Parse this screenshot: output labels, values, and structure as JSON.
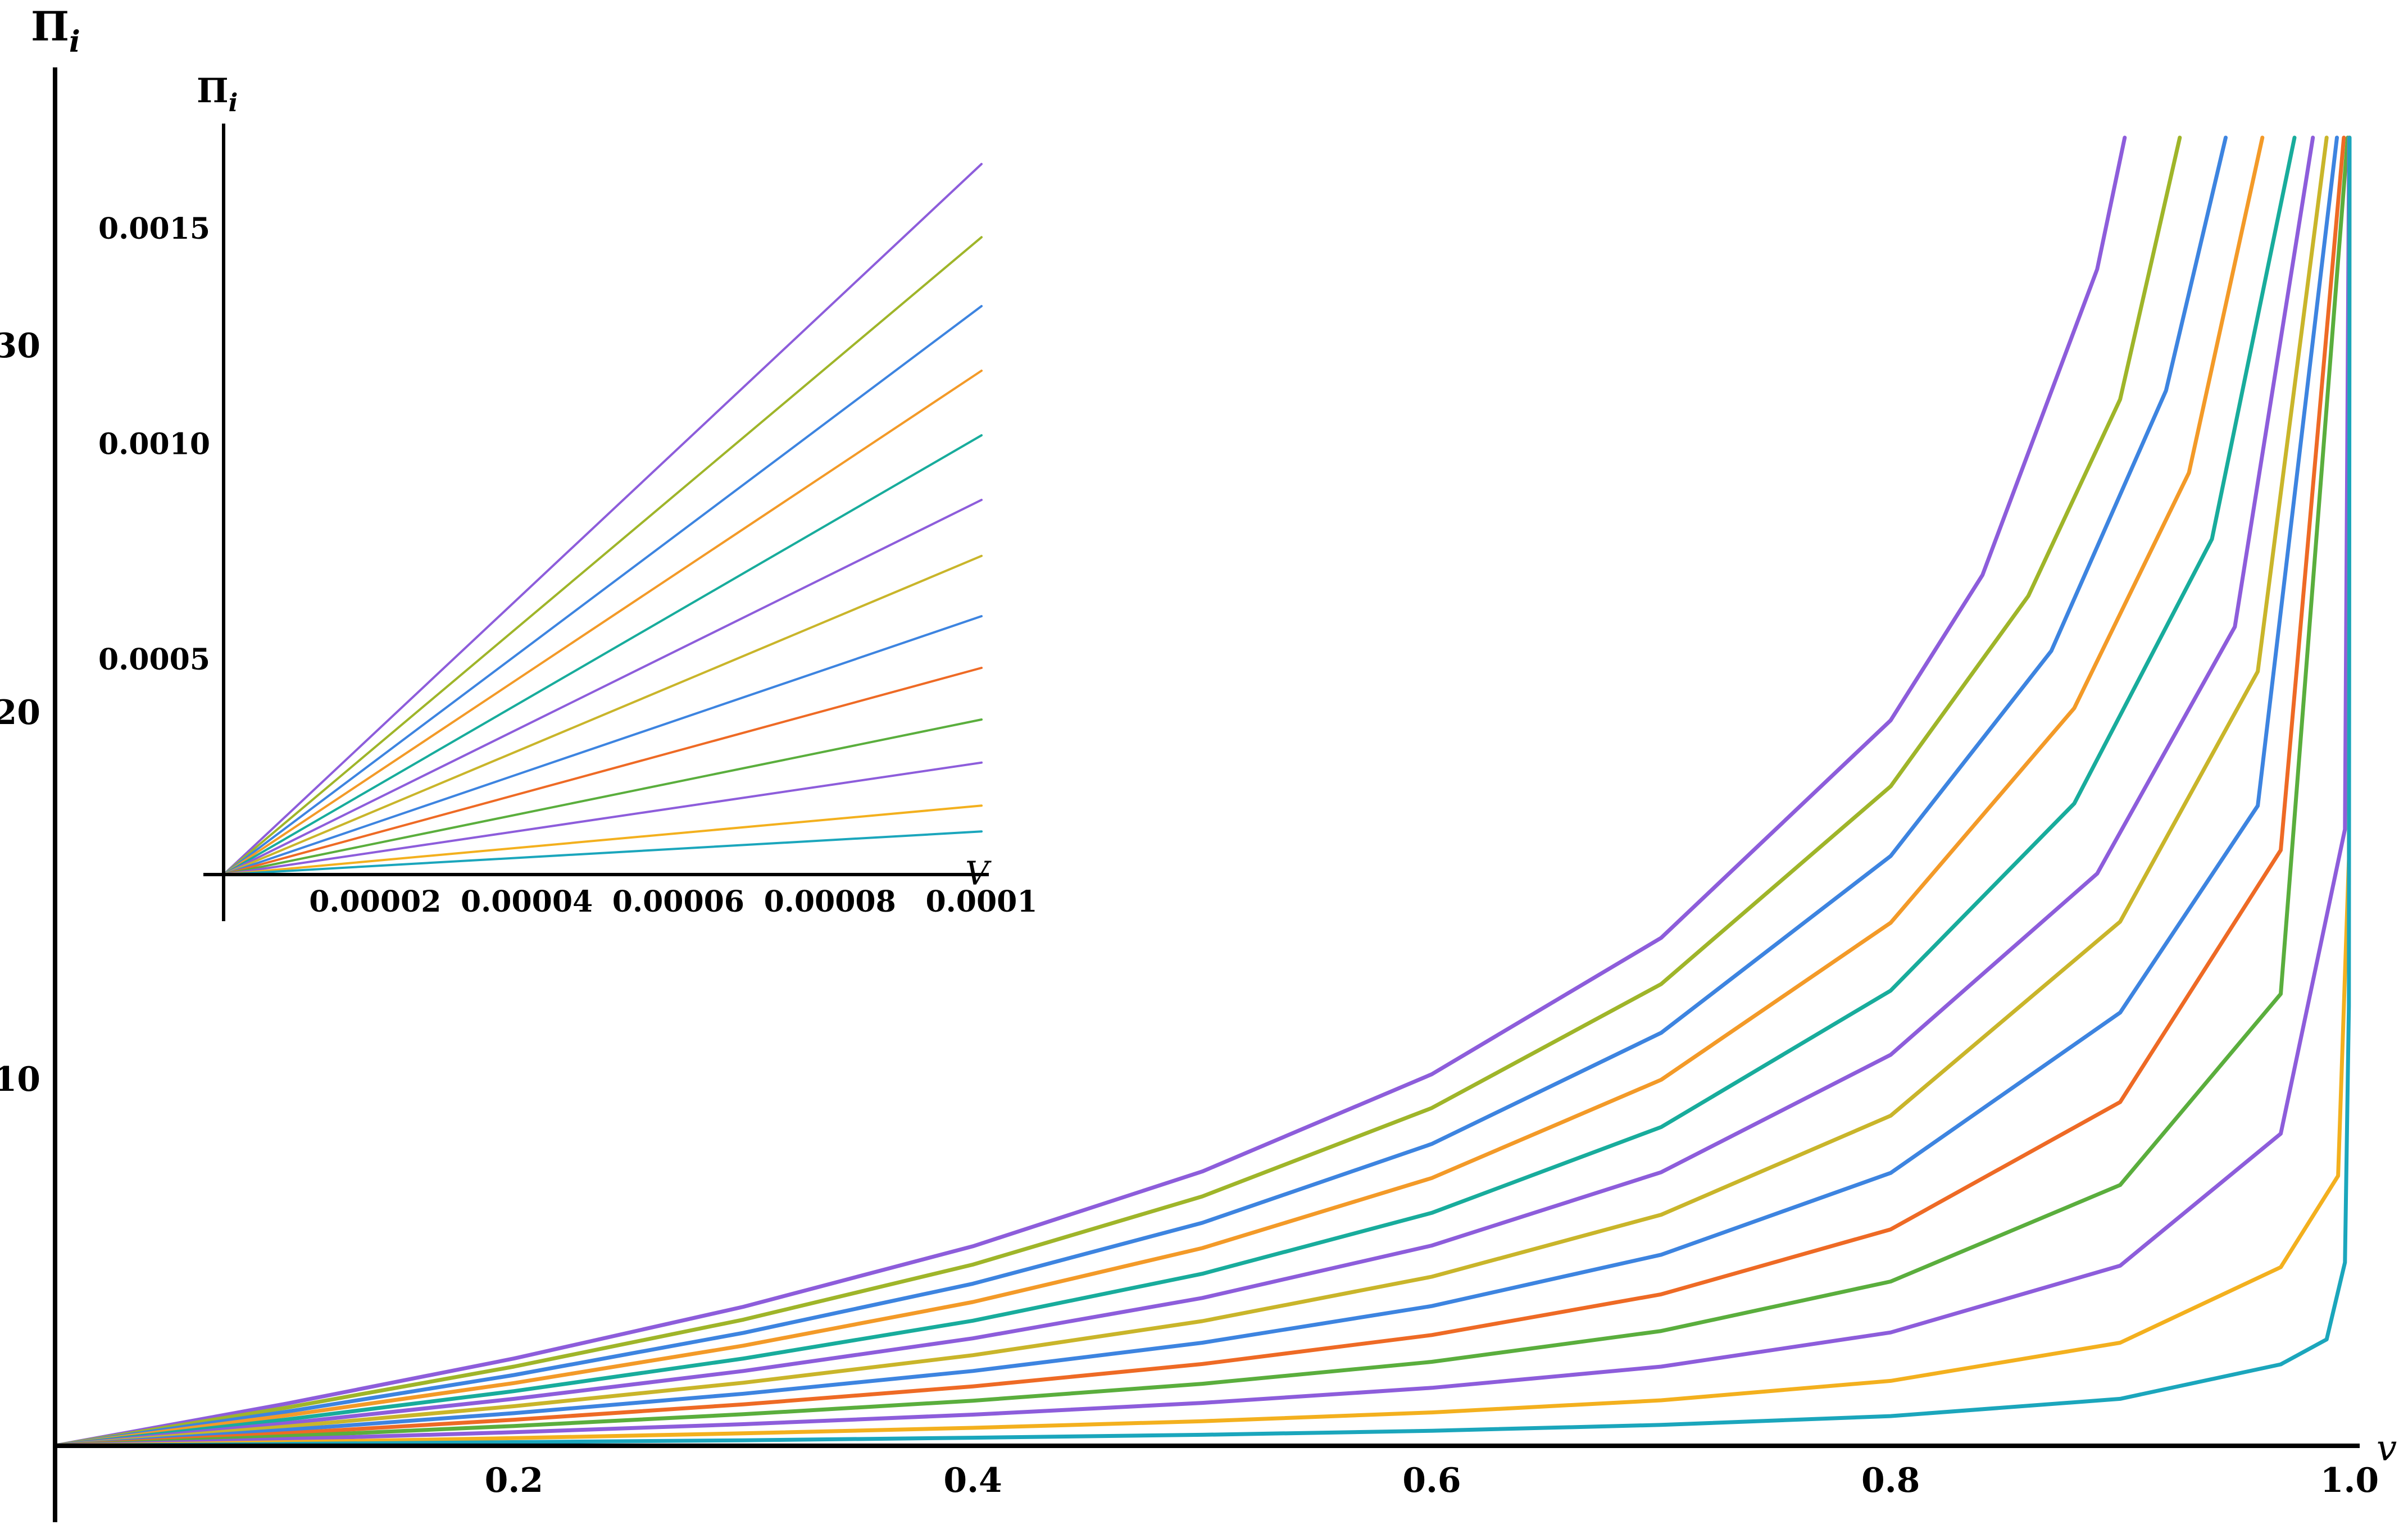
{
  "chart_data": [
    {
      "type": "line",
      "title": "",
      "xlabel": "v",
      "ylabel": "Π",
      "ylabel_subscript": "i",
      "xlim": [
        0,
        1.0
      ],
      "ylim": [
        0,
        38
      ],
      "x_ticks": [
        "0.2",
        "0.4",
        "0.6",
        "0.8",
        "1.0"
      ],
      "y_ticks": [
        "10",
        "20",
        "30"
      ],
      "grid": false,
      "legend": "none",
      "series": [
        {
          "color": "#8d5ddb",
          "values": [
            [
              0,
              0
            ],
            [
              0.1,
              1.14
            ],
            [
              0.2,
              2.38
            ],
            [
              0.3,
              3.79
            ],
            [
              0.4,
              5.44
            ],
            [
              0.5,
              7.48
            ],
            [
              0.6,
              10.13
            ],
            [
              0.7,
              13.85
            ],
            [
              0.8,
              19.78
            ],
            [
              0.84,
              23.74
            ],
            [
              0.89,
              32.08
            ],
            [
              0.902,
              37.5
            ]
          ]
        },
        {
          "color": "#9fb529",
          "values": [
            [
              0,
              0
            ],
            [
              0.1,
              1.03
            ],
            [
              0.2,
              2.16
            ],
            [
              0.3,
              3.44
            ],
            [
              0.4,
              4.94
            ],
            [
              0.5,
              6.8
            ],
            [
              0.6,
              9.21
            ],
            [
              0.7,
              12.59
            ],
            [
              0.8,
              17.98
            ],
            [
              0.86,
              23.17
            ],
            [
              0.9,
              28.53
            ],
            [
              0.926,
              37.5
            ]
          ]
        },
        {
          "color": "#3d84e0",
          "values": [
            [
              0,
              0
            ],
            [
              0.1,
              0.92
            ],
            [
              0.2,
              1.93
            ],
            [
              0.3,
              3.08
            ],
            [
              0.4,
              4.42
            ],
            [
              0.5,
              6.08
            ],
            [
              0.6,
              8.23
            ],
            [
              0.7,
              11.26
            ],
            [
              0.8,
              16.08
            ],
            [
              0.87,
              21.67
            ],
            [
              0.92,
              28.77
            ],
            [
              0.946,
              37.5
            ]
          ]
        },
        {
          "color": "#f39a28",
          "values": [
            [
              0,
              0
            ],
            [
              0.1,
              0.82
            ],
            [
              0.2,
              1.71
            ],
            [
              0.3,
              2.73
            ],
            [
              0.4,
              3.92
            ],
            [
              0.5,
              5.39
            ],
            [
              0.6,
              7.3
            ],
            [
              0.7,
              9.98
            ],
            [
              0.8,
              14.26
            ],
            [
              0.88,
              20.11
            ],
            [
              0.93,
              26.53
            ],
            [
              0.962,
              37.5
            ]
          ]
        },
        {
          "color": "#18ac9c",
          "values": [
            [
              0,
              0
            ],
            [
              0.1,
              0.71
            ],
            [
              0.2,
              1.49
            ],
            [
              0.3,
              2.38
            ],
            [
              0.4,
              3.41
            ],
            [
              0.5,
              4.69
            ],
            [
              0.6,
              6.35
            ],
            [
              0.7,
              8.69
            ],
            [
              0.8,
              12.41
            ],
            [
              0.88,
              17.51
            ],
            [
              0.94,
              24.72
            ],
            [
              0.976,
              37.5
            ]
          ]
        },
        {
          "color": "#8d5ddb",
          "values": [
            [
              0,
              0
            ],
            [
              0.1,
              0.61
            ],
            [
              0.2,
              1.28
            ],
            [
              0.3,
              2.04
            ],
            [
              0.4,
              2.93
            ],
            [
              0.5,
              4.03
            ],
            [
              0.6,
              5.46
            ],
            [
              0.7,
              7.46
            ],
            [
              0.8,
              10.66
            ],
            [
              0.89,
              15.6
            ],
            [
              0.95,
              22.33
            ],
            [
              0.984,
              37.5
            ]
          ]
        },
        {
          "color": "#c9b52a",
          "values": [
            [
              0,
              0
            ],
            [
              0.1,
              0.52
            ],
            [
              0.2,
              1.08
            ],
            [
              0.3,
              1.72
            ],
            [
              0.4,
              2.47
            ],
            [
              0.5,
              3.4
            ],
            [
              0.6,
              4.61
            ],
            [
              0.7,
              6.3
            ],
            [
              0.8,
              9.0
            ],
            [
              0.9,
              14.29
            ],
            [
              0.96,
              21.11
            ],
            [
              0.99,
              37.5
            ]
          ]
        },
        {
          "color": "#3d84e0",
          "values": [
            [
              0,
              0
            ],
            [
              0.1,
              0.43
            ],
            [
              0.2,
              0.89
            ],
            [
              0.3,
              1.42
            ],
            [
              0.4,
              2.04
            ],
            [
              0.5,
              2.81
            ],
            [
              0.6,
              3.81
            ],
            [
              0.7,
              5.21
            ],
            [
              0.8,
              7.44
            ],
            [
              0.9,
              11.81
            ],
            [
              0.96,
              17.45
            ],
            [
              0.9945,
              37.5
            ]
          ]
        },
        {
          "color": "#ee6a25",
          "values": [
            [
              0,
              0
            ],
            [
              0.1,
              0.34
            ],
            [
              0.2,
              0.71
            ],
            [
              0.3,
              1.13
            ],
            [
              0.4,
              1.62
            ],
            [
              0.5,
              2.23
            ],
            [
              0.6,
              3.02
            ],
            [
              0.7,
              4.13
            ],
            [
              0.8,
              5.9
            ],
            [
              0.9,
              9.37
            ],
            [
              0.97,
              16.24
            ],
            [
              0.9975,
              37.5
            ]
          ]
        },
        {
          "color": "#5aae3d",
          "values": [
            [
              0,
              0
            ],
            [
              0.1,
              0.26
            ],
            [
              0.2,
              0.54
            ],
            [
              0.3,
              0.86
            ],
            [
              0.4,
              1.23
            ],
            [
              0.5,
              1.69
            ],
            [
              0.6,
              2.29
            ],
            [
              0.7,
              3.13
            ],
            [
              0.8,
              4.48
            ],
            [
              0.9,
              7.11
            ],
            [
              0.97,
              12.32
            ],
            [
              0.9992,
              37.5
            ]
          ]
        },
        {
          "color": "#8d5ddb",
          "values": [
            [
              0,
              0
            ],
            [
              0.1,
              0.18
            ],
            [
              0.2,
              0.37
            ],
            [
              0.3,
              0.59
            ],
            [
              0.4,
              0.85
            ],
            [
              0.5,
              1.17
            ],
            [
              0.6,
              1.58
            ],
            [
              0.7,
              2.16
            ],
            [
              0.8,
              3.09
            ],
            [
              0.9,
              4.91
            ],
            [
              0.97,
              8.51
            ],
            [
              0.998,
              16.81
            ],
            [
              0.9998,
              37.5
            ]
          ]
        },
        {
          "color": "#f3b01e",
          "values": [
            [
              0,
              0
            ],
            [
              0.1,
              0.1
            ],
            [
              0.2,
              0.21
            ],
            [
              0.3,
              0.34
            ],
            [
              0.4,
              0.49
            ],
            [
              0.5,
              0.67
            ],
            [
              0.6,
              0.91
            ],
            [
              0.7,
              1.24
            ],
            [
              0.8,
              1.77
            ],
            [
              0.9,
              2.81
            ],
            [
              0.97,
              4.87
            ],
            [
              0.995,
              7.36
            ],
            [
              0.9997,
              16.0
            ],
            [
              1.0,
              37.5
            ]
          ]
        },
        {
          "color": "#1ba6bc",
          "values": [
            [
              0,
              0
            ],
            [
              0.1,
              0.05
            ],
            [
              0.2,
              0.1
            ],
            [
              0.3,
              0.15
            ],
            [
              0.4,
              0.22
            ],
            [
              0.5,
              0.3
            ],
            [
              0.6,
              0.41
            ],
            [
              0.7,
              0.57
            ],
            [
              0.8,
              0.81
            ],
            [
              0.9,
              1.28
            ],
            [
              0.97,
              2.22
            ],
            [
              0.99,
              2.9
            ],
            [
              0.998,
              5.0
            ],
            [
              0.9997,
              12.0
            ],
            [
              1.0,
              37.5
            ]
          ]
        }
      ]
    },
    {
      "type": "line",
      "title": "",
      "xlabel": "V",
      "ylabel": "Π",
      "ylabel_subscript": "i",
      "xlim": [
        0,
        0.0001
      ],
      "ylim": [
        0,
        0.0018
      ],
      "x_ticks": [
        "0.00002",
        "0.00004",
        "0.00006",
        "0.00008",
        "0.0001"
      ],
      "y_ticks": [
        "0.0005",
        "0.0010",
        "0.0015"
      ],
      "grid": false,
      "legend": "none",
      "series": [
        {
          "color": "#8d5ddb",
          "values": [
            [
              0,
              0
            ],
            [
              0.0001,
              0.00165
            ]
          ]
        },
        {
          "color": "#9fb529",
          "values": [
            [
              0,
              0
            ],
            [
              0.0001,
              0.00148
            ]
          ]
        },
        {
          "color": "#3d84e0",
          "values": [
            [
              0,
              0
            ],
            [
              0.0001,
              0.00132
            ]
          ]
        },
        {
          "color": "#f39a28",
          "values": [
            [
              0,
              0
            ],
            [
              0.0001,
              0.00117
            ]
          ]
        },
        {
          "color": "#18ac9c",
          "values": [
            [
              0,
              0
            ],
            [
              0.0001,
              0.00102
            ]
          ]
        },
        {
          "color": "#8d5ddb",
          "values": [
            [
              0,
              0
            ],
            [
              0.0001,
              0.00087
            ]
          ]
        },
        {
          "color": "#c9b52a",
          "values": [
            [
              0,
              0
            ],
            [
              0.0001,
              0.00074
            ]
          ]
        },
        {
          "color": "#3d84e0",
          "values": [
            [
              0,
              0
            ],
            [
              0.0001,
              0.0006
            ]
          ]
        },
        {
          "color": "#ee6a25",
          "values": [
            [
              0,
              0
            ],
            [
              0.0001,
              0.00048
            ]
          ]
        },
        {
          "color": "#5aae3d",
          "values": [
            [
              0,
              0
            ],
            [
              0.0001,
              0.00036
            ]
          ]
        },
        {
          "color": "#8d5ddb",
          "values": [
            [
              0,
              0
            ],
            [
              0.0001,
              0.00026
            ]
          ]
        },
        {
          "color": "#f3b01e",
          "values": [
            [
              0,
              0
            ],
            [
              0.0001,
              0.00016
            ]
          ]
        },
        {
          "color": "#1ba6bc",
          "values": [
            [
              0,
              0
            ],
            [
              0.0001,
              0.0001
            ]
          ]
        }
      ]
    }
  ]
}
